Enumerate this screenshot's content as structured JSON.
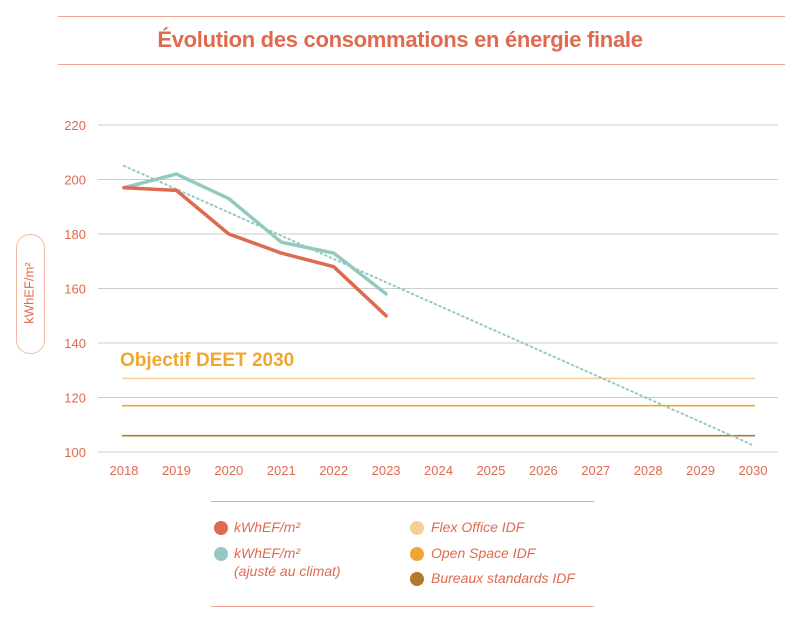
{
  "chart_data": {
    "type": "line",
    "title": "Évolution des consommations en énergie finale",
    "ylabel": "kWhEF/m²",
    "xlabel": "",
    "ylim": [
      100,
      220
    ],
    "yticks": [
      100,
      120,
      140,
      160,
      180,
      200,
      220
    ],
    "x": [
      2018,
      2019,
      2020,
      2021,
      2022,
      2023,
      2024,
      2025,
      2026,
      2027,
      2028,
      2029,
      2030
    ],
    "series": [
      {
        "name": "kWhEF/m²",
        "color": "#e06a4f",
        "x": [
          2018,
          2019,
          2020,
          2021,
          2022,
          2023
        ],
        "values": [
          197,
          196,
          180,
          173,
          168,
          150
        ]
      },
      {
        "name": "kWhEF/m² (ajusté au climat)",
        "color": "#95c9bf",
        "x": [
          2018,
          2019,
          2020,
          2021,
          2022,
          2023
        ],
        "values": [
          197,
          202,
          193,
          177,
          173,
          158
        ]
      }
    ],
    "trend": {
      "color": "#95c9bf",
      "x": [
        2018,
        2030
      ],
      "values": [
        205,
        102.5
      ]
    },
    "targets": [
      {
        "name": "Flex Office IDF",
        "value": 127,
        "color": "#f6cf9b"
      },
      {
        "name": "Open Space IDF",
        "value": 117,
        "color": "#f0a732"
      },
      {
        "name": "Bureaux standards IDF",
        "value": 106,
        "color": "#b07a2a"
      }
    ],
    "annotation": "Objectif DEET 2030"
  },
  "legend": {
    "s1_label": "kWhEF/m²",
    "s2_label": "kWhEF/m²",
    "s2_sub": "(ajusté au climat)",
    "t1_label": "Flex Office IDF",
    "t2_label": "Open Space IDF",
    "t3_label": "Bureaux standards IDF"
  },
  "colors": {
    "accent": "#e06a4f",
    "grid": "#cccccc",
    "teal": "#95c9bf"
  }
}
